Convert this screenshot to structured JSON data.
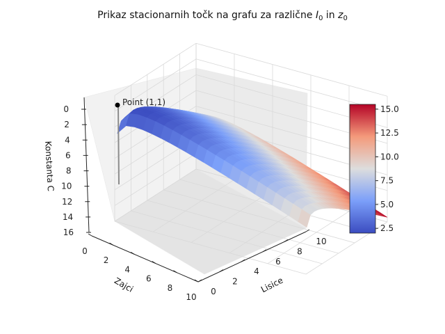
{
  "chart_data": {
    "type": "surface",
    "title_parts": {
      "prefix": "Prikaz stacionarnih točk na grafu za različne ",
      "sym1": "I",
      "sub1": "0",
      "mid": " in ",
      "sym2": "z",
      "sub2": "0"
    },
    "xlabel": "Zajci",
    "ylabel": "Lisice",
    "zlabel": "Konstanta C",
    "xlim": [
      0,
      10
    ],
    "ylim": [
      0,
      10
    ],
    "zlim": [
      0,
      16
    ],
    "z_inverted": true,
    "xticks": [
      "0",
      "2",
      "4",
      "6",
      "8",
      "10"
    ],
    "yticks": [
      "0",
      "2",
      "4",
      "6",
      "8",
      "10"
    ],
    "zticks": [
      "0",
      "2",
      "4",
      "6",
      "8",
      "10",
      "12",
      "14",
      "16"
    ],
    "colormap": "coolwarm",
    "colorbar": {
      "ticks": [
        "2.5",
        "5.0",
        "7.5",
        "10.0",
        "12.5",
        "15.0"
      ],
      "min": 2,
      "max": 15.5
    },
    "surface": {
      "x_range": [
        0.1,
        10
      ],
      "y_range": [
        0.1,
        10
      ],
      "z_formula": "x + y - ln(x) - ln(y)",
      "z_min": 2,
      "z_max": 15.4
    },
    "annotation": {
      "label": "Point (1,1)",
      "x": 1,
      "y": 1,
      "z": 2
    },
    "grid": true,
    "colors": {
      "low": "#3b4cc0",
      "mid": "#dddddd",
      "high": "#b40426"
    }
  }
}
